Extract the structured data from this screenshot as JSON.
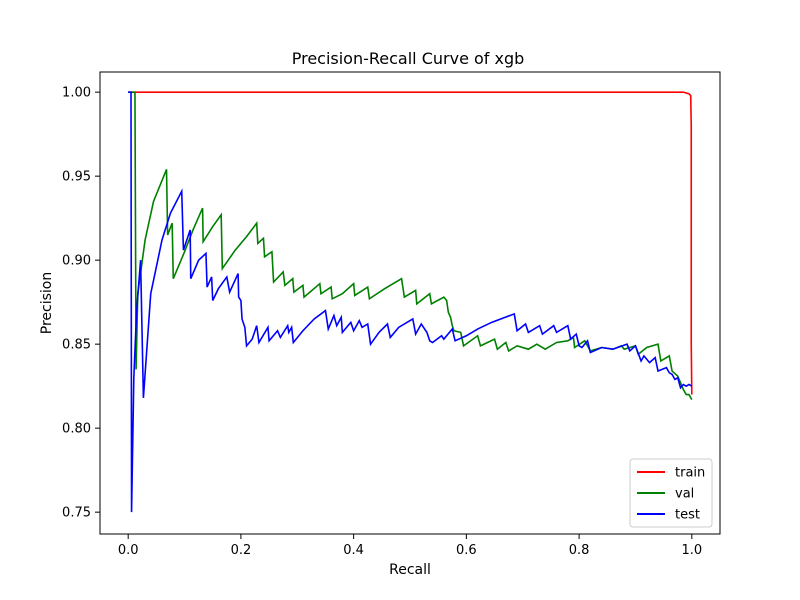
{
  "chart_data": {
    "type": "line",
    "title": "Precision-Recall Curve of xgb",
    "xlabel": "Recall",
    "ylabel": "Precision",
    "xlim": [
      -0.05,
      1.05
    ],
    "ylim": [
      0.737,
      1.012
    ],
    "x_ticks": [
      0.0,
      0.2,
      0.4,
      0.6,
      0.8,
      1.0
    ],
    "x_tick_labels": [
      "0.0",
      "0.2",
      "0.4",
      "0.6",
      "0.8",
      "1.0"
    ],
    "y_ticks": [
      0.75,
      0.8,
      0.85,
      0.9,
      0.95,
      1.0
    ],
    "y_tick_labels": [
      "0.75",
      "0.80",
      "0.85",
      "0.90",
      "0.95",
      "1.00"
    ],
    "grid": false,
    "legend_position": "lower-right",
    "series": [
      {
        "name": "train",
        "color": "#ff0000",
        "points": [
          [
            0.0,
            1.0
          ],
          [
            0.2,
            1.0
          ],
          [
            0.5,
            1.0
          ],
          [
            0.8,
            1.0
          ],
          [
            0.985,
            1.0
          ],
          [
            0.995,
            0.999
          ],
          [
            0.998,
            0.998
          ],
          [
            0.999,
            0.98
          ],
          [
            0.999,
            0.85
          ],
          [
            1.0,
            0.82
          ]
        ]
      },
      {
        "name": "val",
        "color": "#008000",
        "points": [
          [
            0.0,
            1.0
          ],
          [
            0.012,
            1.0
          ],
          [
            0.014,
            0.835
          ],
          [
            0.017,
            0.88
          ],
          [
            0.03,
            0.912
          ],
          [
            0.045,
            0.935
          ],
          [
            0.068,
            0.954
          ],
          [
            0.07,
            0.915
          ],
          [
            0.078,
            0.922
          ],
          [
            0.08,
            0.889
          ],
          [
            0.1,
            0.905
          ],
          [
            0.115,
            0.918
          ],
          [
            0.132,
            0.931
          ],
          [
            0.133,
            0.911
          ],
          [
            0.15,
            0.92
          ],
          [
            0.165,
            0.927
          ],
          [
            0.167,
            0.895
          ],
          [
            0.19,
            0.906
          ],
          [
            0.21,
            0.914
          ],
          [
            0.228,
            0.922
          ],
          [
            0.23,
            0.91
          ],
          [
            0.24,
            0.913
          ],
          [
            0.242,
            0.902
          ],
          [
            0.255,
            0.905
          ],
          [
            0.258,
            0.887
          ],
          [
            0.275,
            0.893
          ],
          [
            0.278,
            0.885
          ],
          [
            0.292,
            0.889
          ],
          [
            0.294,
            0.881
          ],
          [
            0.31,
            0.885
          ],
          [
            0.312,
            0.878
          ],
          [
            0.34,
            0.886
          ],
          [
            0.342,
            0.88
          ],
          [
            0.36,
            0.884
          ],
          [
            0.362,
            0.877
          ],
          [
            0.38,
            0.88
          ],
          [
            0.4,
            0.886
          ],
          [
            0.402,
            0.879
          ],
          [
            0.425,
            0.884
          ],
          [
            0.428,
            0.877
          ],
          [
            0.455,
            0.883
          ],
          [
            0.485,
            0.889
          ],
          [
            0.49,
            0.878
          ],
          [
            0.51,
            0.882
          ],
          [
            0.512,
            0.874
          ],
          [
            0.535,
            0.88
          ],
          [
            0.538,
            0.874
          ],
          [
            0.56,
            0.878
          ],
          [
            0.565,
            0.876
          ],
          [
            0.568,
            0.869
          ],
          [
            0.572,
            0.866
          ],
          [
            0.575,
            0.861
          ],
          [
            0.578,
            0.858
          ],
          [
            0.59,
            0.857
          ],
          [
            0.595,
            0.849
          ],
          [
            0.62,
            0.855
          ],
          [
            0.625,
            0.849
          ],
          [
            0.65,
            0.853
          ],
          [
            0.655,
            0.847
          ],
          [
            0.67,
            0.851
          ],
          [
            0.675,
            0.846
          ],
          [
            0.69,
            0.849
          ],
          [
            0.71,
            0.847
          ],
          [
            0.725,
            0.85
          ],
          [
            0.74,
            0.847
          ],
          [
            0.76,
            0.851
          ],
          [
            0.78,
            0.852
          ],
          [
            0.79,
            0.854
          ],
          [
            0.792,
            0.848
          ],
          [
            0.81,
            0.852
          ],
          [
            0.82,
            0.846
          ],
          [
            0.84,
            0.848
          ],
          [
            0.86,
            0.847
          ],
          [
            0.875,
            0.849
          ],
          [
            0.88,
            0.847
          ],
          [
            0.9,
            0.849
          ],
          [
            0.905,
            0.844
          ],
          [
            0.92,
            0.848
          ],
          [
            0.94,
            0.85
          ],
          [
            0.945,
            0.84
          ],
          [
            0.96,
            0.843
          ],
          [
            0.965,
            0.834
          ],
          [
            0.975,
            0.831
          ],
          [
            0.98,
            0.827
          ],
          [
            0.985,
            0.823
          ],
          [
            0.99,
            0.82
          ],
          [
            0.995,
            0.82
          ],
          [
            1.0,
            0.817
          ]
        ]
      },
      {
        "name": "test",
        "color": "#0000ff",
        "points": [
          [
            0.0,
            1.0
          ],
          [
            0.005,
            1.0
          ],
          [
            0.006,
            0.75
          ],
          [
            0.01,
            0.83
          ],
          [
            0.015,
            0.87
          ],
          [
            0.022,
            0.9
          ],
          [
            0.027,
            0.818
          ],
          [
            0.04,
            0.88
          ],
          [
            0.06,
            0.912
          ],
          [
            0.075,
            0.928
          ],
          [
            0.095,
            0.941
          ],
          [
            0.098,
            0.906
          ],
          [
            0.11,
            0.918
          ],
          [
            0.111,
            0.889
          ],
          [
            0.125,
            0.9
          ],
          [
            0.138,
            0.904
          ],
          [
            0.14,
            0.884
          ],
          [
            0.148,
            0.89
          ],
          [
            0.15,
            0.876
          ],
          [
            0.16,
            0.883
          ],
          [
            0.175,
            0.89
          ],
          [
            0.18,
            0.881
          ],
          [
            0.195,
            0.892
          ],
          [
            0.196,
            0.878
          ],
          [
            0.2,
            0.876
          ],
          [
            0.202,
            0.865
          ],
          [
            0.207,
            0.86
          ],
          [
            0.21,
            0.849
          ],
          [
            0.22,
            0.853
          ],
          [
            0.228,
            0.861
          ],
          [
            0.232,
            0.851
          ],
          [
            0.248,
            0.86
          ],
          [
            0.25,
            0.852
          ],
          [
            0.265,
            0.858
          ],
          [
            0.27,
            0.854
          ],
          [
            0.283,
            0.861
          ],
          [
            0.285,
            0.857
          ],
          [
            0.29,
            0.86
          ],
          [
            0.293,
            0.851
          ],
          [
            0.31,
            0.858
          ],
          [
            0.33,
            0.865
          ],
          [
            0.35,
            0.87
          ],
          [
            0.355,
            0.859
          ],
          [
            0.365,
            0.867
          ],
          [
            0.37,
            0.861
          ],
          [
            0.378,
            0.866
          ],
          [
            0.38,
            0.857
          ],
          [
            0.395,
            0.863
          ],
          [
            0.4,
            0.858
          ],
          [
            0.41,
            0.864
          ],
          [
            0.415,
            0.86
          ],
          [
            0.425,
            0.862
          ],
          [
            0.43,
            0.85
          ],
          [
            0.445,
            0.857
          ],
          [
            0.46,
            0.862
          ],
          [
            0.465,
            0.854
          ],
          [
            0.48,
            0.86
          ],
          [
            0.505,
            0.865
          ],
          [
            0.51,
            0.856
          ],
          [
            0.52,
            0.862
          ],
          [
            0.53,
            0.857
          ],
          [
            0.535,
            0.852
          ],
          [
            0.54,
            0.851
          ],
          [
            0.556,
            0.855
          ],
          [
            0.56,
            0.853
          ],
          [
            0.575,
            0.859
          ],
          [
            0.58,
            0.852
          ],
          [
            0.6,
            0.855
          ],
          [
            0.62,
            0.859
          ],
          [
            0.645,
            0.863
          ],
          [
            0.685,
            0.868
          ],
          [
            0.69,
            0.858
          ],
          [
            0.705,
            0.862
          ],
          [
            0.71,
            0.857
          ],
          [
            0.73,
            0.861
          ],
          [
            0.735,
            0.856
          ],
          [
            0.755,
            0.861
          ],
          [
            0.76,
            0.857
          ],
          [
            0.78,
            0.861
          ],
          [
            0.785,
            0.853
          ],
          [
            0.795,
            0.856
          ],
          [
            0.8,
            0.849
          ],
          [
            0.805,
            0.848
          ],
          [
            0.815,
            0.852
          ],
          [
            0.82,
            0.845
          ],
          [
            0.84,
            0.848
          ],
          [
            0.86,
            0.847
          ],
          [
            0.885,
            0.85
          ],
          [
            0.89,
            0.846
          ],
          [
            0.9,
            0.849
          ],
          [
            0.91,
            0.84
          ],
          [
            0.915,
            0.843
          ],
          [
            0.925,
            0.839
          ],
          [
            0.935,
            0.842
          ],
          [
            0.94,
            0.834
          ],
          [
            0.955,
            0.836
          ],
          [
            0.96,
            0.833
          ],
          [
            0.965,
            0.832
          ],
          [
            0.97,
            0.829
          ],
          [
            0.975,
            0.83
          ],
          [
            0.98,
            0.824
          ],
          [
            0.985,
            0.826
          ],
          [
            0.99,
            0.825
          ],
          [
            0.995,
            0.826
          ],
          [
            1.0,
            0.825
          ]
        ]
      }
    ]
  }
}
